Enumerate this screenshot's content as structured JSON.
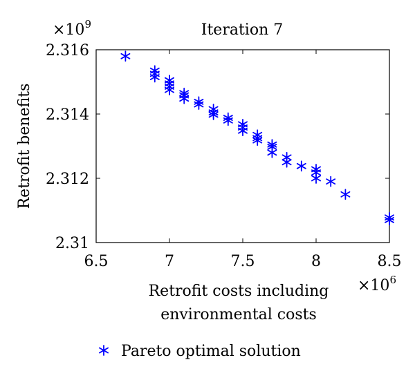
{
  "chart_data": {
    "type": "scatter",
    "title": "Iteration 7",
    "xlabel": [
      "Retrofit costs including",
      "environmental costs"
    ],
    "ylabel": "Retrofit benefits",
    "x_multiplier": "×10^6",
    "y_multiplier": "×10^9",
    "xlim": [
      6.5,
      8.5
    ],
    "ylim": [
      2.31,
      2.316
    ],
    "xticks": [
      6.5,
      7,
      7.5,
      8,
      8.5
    ],
    "xtick_labels": [
      "6.5",
      "7",
      "7.5",
      "8",
      "8.5"
    ],
    "yticks": [
      2.31,
      2.312,
      2.314,
      2.316
    ],
    "ytick_labels": [
      "2.31",
      "2.312",
      "2.314",
      "2.316"
    ],
    "grid": false,
    "legend_position": "bottom",
    "marker": "asterisk",
    "marker_color": "#0000ff",
    "series": [
      {
        "name": "Pareto optimal solution",
        "points": [
          [
            6.7,
            2.3158
          ],
          [
            6.9,
            2.31535
          ],
          [
            6.9,
            2.31525
          ],
          [
            6.9,
            2.31515
          ],
          [
            7.0,
            2.31505
          ],
          [
            7.0,
            2.31495
          ],
          [
            7.0,
            2.31485
          ],
          [
            7.0,
            2.31475
          ],
          [
            7.1,
            2.31465
          ],
          [
            7.1,
            2.31458
          ],
          [
            7.1,
            2.31448
          ],
          [
            7.2,
            2.31438
          ],
          [
            7.2,
            2.3143
          ],
          [
            7.3,
            2.31415
          ],
          [
            7.3,
            2.31405
          ],
          [
            7.3,
            2.31398
          ],
          [
            7.4,
            2.31388
          ],
          [
            7.4,
            2.3138
          ],
          [
            7.5,
            2.31368
          ],
          [
            7.5,
            2.31358
          ],
          [
            7.5,
            2.31348
          ],
          [
            7.6,
            2.31335
          ],
          [
            7.6,
            2.31325
          ],
          [
            7.6,
            2.31318
          ],
          [
            7.7,
            2.31305
          ],
          [
            7.7,
            2.31298
          ],
          [
            7.7,
            2.3128
          ],
          [
            7.8,
            2.31265
          ],
          [
            7.8,
            2.3125
          ],
          [
            7.9,
            2.31238
          ],
          [
            8.0,
            2.31228
          ],
          [
            8.0,
            2.31218
          ],
          [
            8.0,
            2.312
          ],
          [
            8.1,
            2.3119
          ],
          [
            8.2,
            2.3115
          ],
          [
            8.5,
            2.31078
          ],
          [
            8.5,
            2.3107
          ]
        ]
      }
    ]
  }
}
